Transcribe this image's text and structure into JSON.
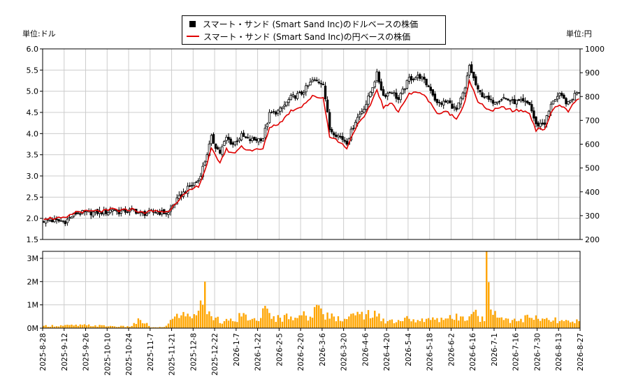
{
  "legend": {
    "usd_label": "スマート・サンド (Smart Sand Inc)のドルベースの株価",
    "jpy_label": "スマート・サンド (Smart Sand Inc)の円ベースの株価"
  },
  "units": {
    "left": "単位:ドル",
    "right": "単位:円"
  },
  "colors": {
    "usd": "#000000",
    "jpy": "#e00000",
    "volume": "#ffa500",
    "grid": "#cccccc"
  },
  "chart_data": [
    {
      "type": "candlestick+line",
      "x_tick_labels": [
        "2025-8-28",
        "2025-9-12",
        "2025-9-26",
        "2025-10-10",
        "2025-10-24",
        "2025-11-7",
        "2025-11-21",
        "2025-12-8",
        "2025-12-22",
        "2026-1-7",
        "2026-1-22",
        "2026-2-5",
        "2026-2-20",
        "2026-3-6",
        "2026-3-20",
        "2026-4-6",
        "2026-4-20",
        "2026-5-4",
        "2026-5-18",
        "2026-6-2",
        "2026-6-16",
        "2026-7-1",
        "2026-7-16",
        "2026-7-30",
        "2026-8-13",
        "2026-8-27"
      ],
      "left_axis": {
        "ylim": [
          1.5,
          6.0
        ],
        "ticks": [
          "1.5",
          "2.0",
          "2.5",
          "3.0",
          "3.5",
          "4.0",
          "4.5",
          "5.0",
          "5.5",
          "6.0"
        ]
      },
      "right_axis": {
        "ylim": [
          200,
          1000
        ],
        "ticks": [
          "200",
          "300",
          "400",
          "500",
          "600",
          "700",
          "800",
          "900",
          "1000"
        ]
      },
      "usd_close_anchors": [
        [
          0,
          1.95
        ],
        [
          10,
          1.93
        ],
        [
          15,
          2.12
        ],
        [
          30,
          2.15
        ],
        [
          32,
          2.22
        ],
        [
          35,
          2.15
        ],
        [
          42,
          2.2
        ],
        [
          45,
          2.1
        ],
        [
          52,
          2.15
        ],
        [
          58,
          2.12
        ],
        [
          60,
          2.3
        ],
        [
          64,
          2.55
        ],
        [
          68,
          2.75
        ],
        [
          72,
          2.9
        ],
        [
          75,
          3.35
        ],
        [
          78,
          3.9
        ],
        [
          80,
          3.7
        ],
        [
          82,
          3.55
        ],
        [
          85,
          3.9
        ],
        [
          88,
          3.75
        ],
        [
          92,
          3.95
        ],
        [
          95,
          3.85
        ],
        [
          98,
          3.85
        ],
        [
          102,
          3.9
        ],
        [
          105,
          4.45
        ],
        [
          110,
          4.55
        ],
        [
          115,
          4.85
        ],
        [
          120,
          4.95
        ],
        [
          125,
          5.25
        ],
        [
          130,
          5.2
        ],
        [
          133,
          4.1
        ],
        [
          137,
          3.95
        ],
        [
          141,
          3.8
        ],
        [
          145,
          4.3
        ],
        [
          150,
          4.7
        ],
        [
          155,
          5.4
        ],
        [
          158,
          4.9
        ],
        [
          162,
          5.0
        ],
        [
          165,
          4.8
        ],
        [
          170,
          5.3
        ],
        [
          175,
          5.35
        ],
        [
          180,
          5.05
        ],
        [
          183,
          4.7
        ],
        [
          188,
          4.75
        ],
        [
          192,
          4.55
        ],
        [
          196,
          5.05
        ],
        [
          198,
          5.6
        ],
        [
          202,
          5.0
        ],
        [
          208,
          4.75
        ],
        [
          214,
          4.85
        ],
        [
          218,
          4.75
        ],
        [
          222,
          4.75
        ],
        [
          226,
          4.7
        ],
        [
          229,
          4.2
        ],
        [
          233,
          4.25
        ],
        [
          237,
          4.8
        ],
        [
          240,
          4.9
        ],
        [
          244,
          4.7
        ],
        [
          248,
          5.0
        ]
      ],
      "jpy_close_anchors": [
        [
          0,
          290
        ],
        [
          10,
          288
        ],
        [
          15,
          316
        ],
        [
          30,
          320
        ],
        [
          32,
          330
        ],
        [
          35,
          320
        ],
        [
          42,
          328
        ],
        [
          45,
          312
        ],
        [
          52,
          320
        ],
        [
          58,
          315
        ],
        [
          60,
          342
        ],
        [
          64,
          378
        ],
        [
          68,
          405
        ],
        [
          72,
          425
        ],
        [
          75,
          490
        ],
        [
          78,
          580
        ],
        [
          80,
          548
        ],
        [
          82,
          525
        ],
        [
          85,
          578
        ],
        [
          88,
          560
        ],
        [
          92,
          590
        ],
        [
          95,
          576
        ],
        [
          98,
          575
        ],
        [
          102,
          580
        ],
        [
          105,
          670
        ],
        [
          110,
          690
        ],
        [
          115,
          740
        ],
        [
          120,
          760
        ],
        [
          125,
          800
        ],
        [
          130,
          795
        ],
        [
          133,
          635
        ],
        [
          137,
          612
        ],
        [
          141,
          585
        ],
        [
          145,
          668
        ],
        [
          150,
          725
        ],
        [
          155,
          830
        ],
        [
          158,
          755
        ],
        [
          162,
          770
        ],
        [
          165,
          740
        ],
        [
          170,
          810
        ],
        [
          175,
          820
        ],
        [
          180,
          775
        ],
        [
          183,
          728
        ],
        [
          188,
          735
        ],
        [
          192,
          705
        ],
        [
          196,
          780
        ],
        [
          198,
          870
        ],
        [
          202,
          775
        ],
        [
          208,
          740
        ],
        [
          214,
          755
        ],
        [
          218,
          740
        ],
        [
          222,
          742
        ],
        [
          226,
          730
        ],
        [
          229,
          660
        ],
        [
          233,
          665
        ],
        [
          237,
          748
        ],
        [
          240,
          765
        ],
        [
          244,
          740
        ],
        [
          248,
          785
        ]
      ],
      "points_count": 250
    },
    {
      "type": "bar",
      "series_name": "volume",
      "ylim": [
        0,
        3300000
      ],
      "y_ticks": [
        "0M",
        "1M",
        "2M",
        "3M"
      ],
      "volume_anchors": [
        [
          0,
          0.1
        ],
        [
          20,
          0.12
        ],
        [
          40,
          0.06
        ],
        [
          45,
          0.35
        ],
        [
          50,
          0.03
        ],
        [
          53,
          0.03
        ],
        [
          56,
          0.05
        ],
        [
          60,
          0.4
        ],
        [
          64,
          0.55
        ],
        [
          68,
          0.5
        ],
        [
          70,
          0.6
        ],
        [
          72,
          0.75
        ],
        [
          74,
          1.0
        ],
        [
          75,
          2.0
        ],
        [
          76,
          0.6
        ],
        [
          80,
          0.45
        ],
        [
          84,
          0.3
        ],
        [
          88,
          0.3
        ],
        [
          92,
          0.5
        ],
        [
          96,
          0.35
        ],
        [
          100,
          0.3
        ],
        [
          102,
          0.85
        ],
        [
          106,
          0.4
        ],
        [
          110,
          0.45
        ],
        [
          115,
          0.5
        ],
        [
          120,
          0.55
        ],
        [
          125,
          0.45
        ],
        [
          127,
          1.0
        ],
        [
          130,
          0.6
        ],
        [
          135,
          0.5
        ],
        [
          140,
          0.4
        ],
        [
          145,
          0.55
        ],
        [
          150,
          0.6
        ],
        [
          155,
          0.5
        ],
        [
          160,
          0.3
        ],
        [
          165,
          0.35
        ],
        [
          170,
          0.4
        ],
        [
          175,
          0.3
        ],
        [
          180,
          0.35
        ],
        [
          185,
          0.45
        ],
        [
          190,
          0.4
        ],
        [
          195,
          0.5
        ],
        [
          200,
          0.7
        ],
        [
          205,
          0.3
        ],
        [
          206,
          3.3
        ],
        [
          208,
          0.8
        ],
        [
          212,
          0.45
        ],
        [
          218,
          0.35
        ],
        [
          222,
          0.4
        ],
        [
          226,
          0.45
        ],
        [
          230,
          0.4
        ],
        [
          235,
          0.35
        ],
        [
          240,
          0.3
        ],
        [
          245,
          0.25
        ],
        [
          249,
          0.3
        ]
      ]
    }
  ]
}
